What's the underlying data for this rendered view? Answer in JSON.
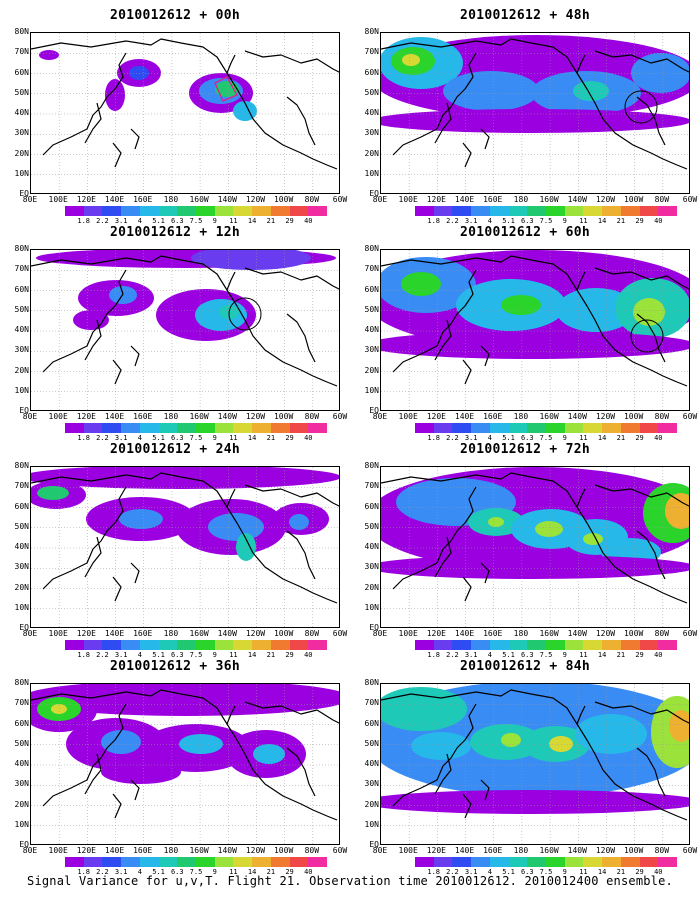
{
  "panels": [
    {
      "title": "2010012612 + 00h"
    },
    {
      "title": "2010012612 + 48h"
    },
    {
      "title": "2010012612 + 12h"
    },
    {
      "title": "2010012612 + 60h"
    },
    {
      "title": "2010012612 + 24h"
    },
    {
      "title": "2010012612 + 72h"
    },
    {
      "title": "2010012612 + 36h"
    },
    {
      "title": "2010012612 + 84h"
    }
  ],
  "lat_labels": [
    "80N",
    "70N",
    "60N",
    "50N",
    "40N",
    "30N",
    "20N",
    "10N",
    "EQ"
  ],
  "lon_labels": [
    "80E",
    "100E",
    "120E",
    "140E",
    "160E",
    "180",
    "160W",
    "140W",
    "120W",
    "100W",
    "80W",
    "60W"
  ],
  "colorbar": {
    "labels": [
      "1.8",
      "2.2",
      "3.1",
      "4",
      "5.1",
      "6.3",
      "7.5",
      "9",
      "11",
      "14",
      "21",
      "29",
      "40"
    ],
    "colors": [
      "#9b00e0",
      "#6a3cf0",
      "#2f4cf2",
      "#3a8cf5",
      "#25b8e8",
      "#1ec9b8",
      "#20c870",
      "#2ad42a",
      "#9be33a",
      "#d8d835",
      "#eeb030",
      "#f07a30",
      "#f04848",
      "#f02ca0"
    ]
  },
  "caption": "Signal Variance for u,v,T. Flight 21. Observation time 2010012612. 2010012400 ensemble."
}
